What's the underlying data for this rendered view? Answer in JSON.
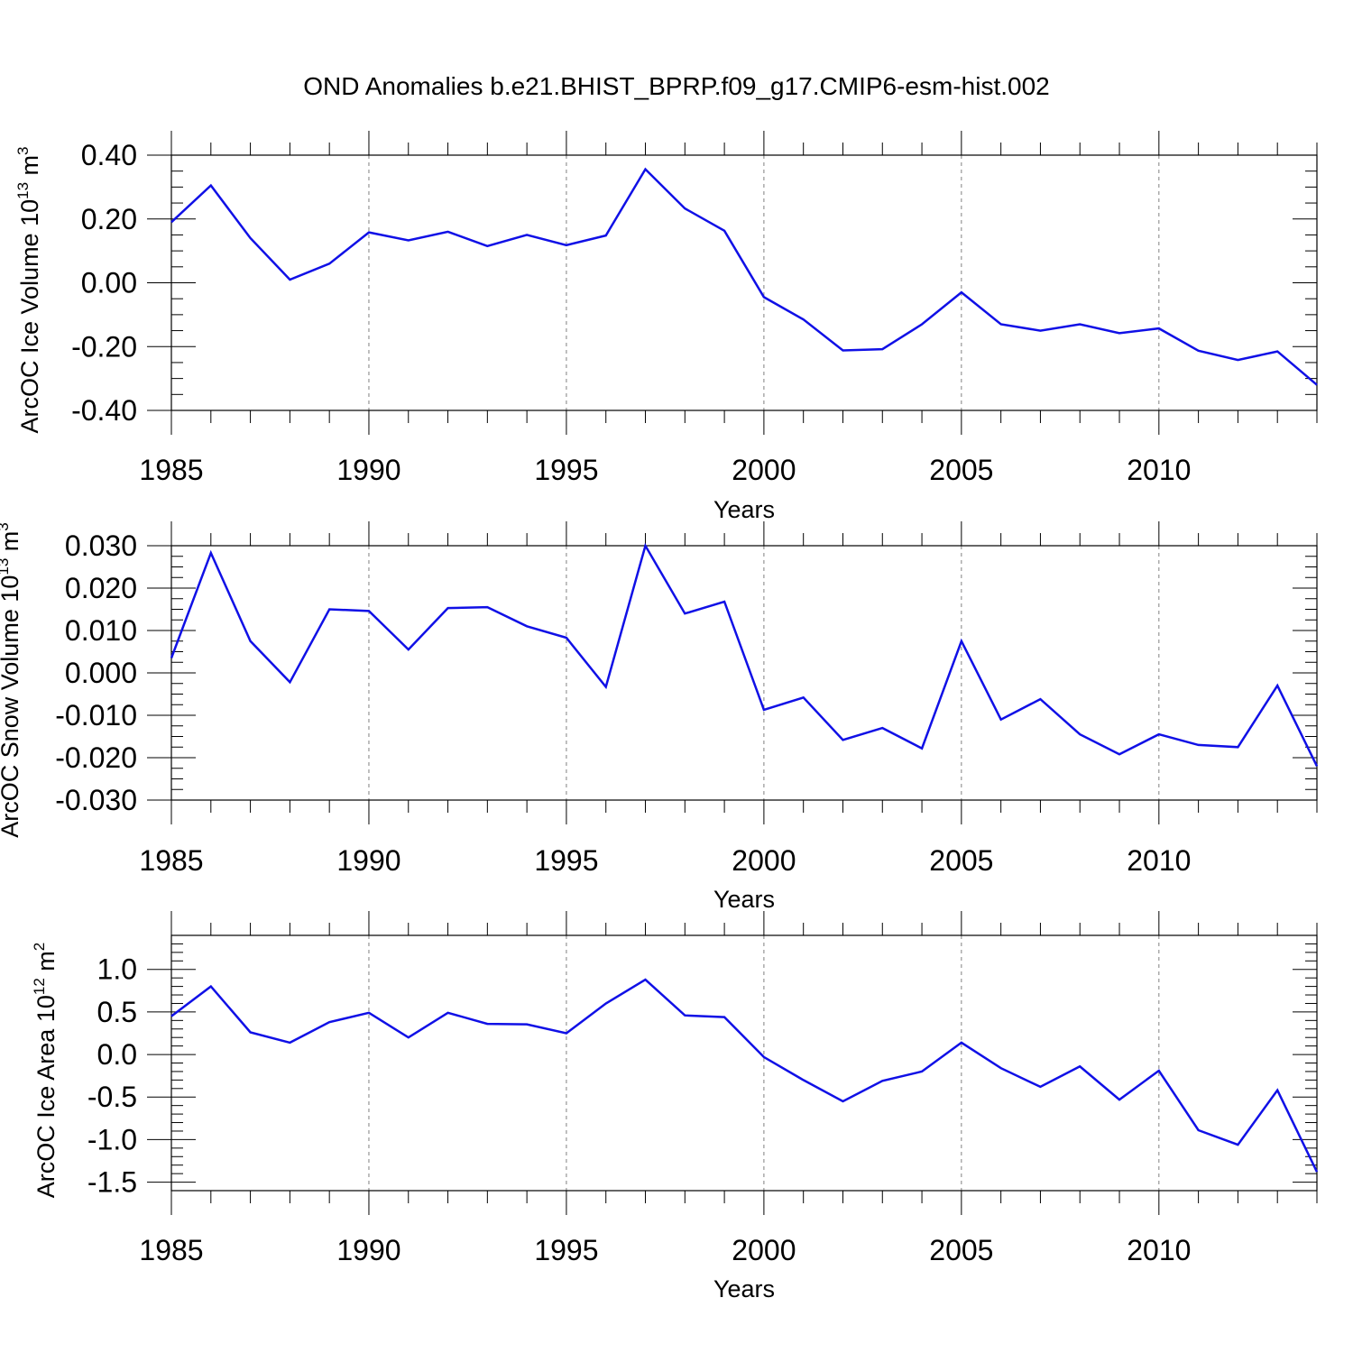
{
  "figure_title": "OND Anomalies b.e21.BHIST_BPRP.f09_g17.CMIP6-esm-hist.002",
  "colors": {
    "line": "#1010e6",
    "axis": "#000000",
    "grid": "#808080"
  },
  "chart_data": [
    {
      "type": "line",
      "xlabel": "Years",
      "ylabel": {
        "text": "ArcOC Ice Volume 10",
        "exponent": "13",
        "unit": " m",
        "unit_exponent": "3"
      },
      "xlim": [
        1985,
        2014
      ],
      "ylim": [
        -0.4,
        0.4
      ],
      "xticks": [
        1985,
        1990,
        1995,
        2000,
        2005,
        2010
      ],
      "yticks": [
        0.4,
        0.2,
        0.0,
        -0.2,
        -0.4
      ],
      "ytick_labels": [
        "0.40",
        "0.20",
        "0.00",
        "-0.20",
        "-0.40"
      ],
      "grid": "vertical dashed at major x ticks",
      "x": [
        1985,
        1986,
        1987,
        1988,
        1989,
        1990,
        1991,
        1992,
        1993,
        1994,
        1995,
        1996,
        1997,
        1998,
        1999,
        2000,
        2001,
        2002,
        2003,
        2004,
        2005,
        2006,
        2007,
        2008,
        2009,
        2010,
        2011,
        2012,
        2013,
        2014
      ],
      "values": [
        0.19,
        0.305,
        0.14,
        0.01,
        0.06,
        0.158,
        0.133,
        0.16,
        0.115,
        0.15,
        0.118,
        0.148,
        0.356,
        0.233,
        0.163,
        -0.045,
        -0.115,
        -0.212,
        -0.208,
        -0.13,
        -0.03,
        -0.13,
        -0.15,
        -0.13,
        -0.158,
        -0.143,
        -0.213,
        -0.242,
        -0.215,
        -0.32
      ]
    },
    {
      "type": "line",
      "xlabel": "Years",
      "ylabel": {
        "text": "ArcOC Snow Volume 10",
        "exponent": "13",
        "unit": " m",
        "unit_exponent": "3"
      },
      "xlim": [
        1985,
        2014
      ],
      "ylim": [
        -0.03,
        0.03
      ],
      "xticks": [
        1985,
        1990,
        1995,
        2000,
        2005,
        2010
      ],
      "yticks": [
        0.03,
        0.02,
        0.01,
        0.0,
        -0.01,
        -0.02,
        -0.03
      ],
      "ytick_labels": [
        "0.030",
        "0.020",
        "0.010",
        "0.000",
        "-0.010",
        "-0.020",
        "-0.030"
      ],
      "grid": "vertical dashed at major x ticks",
      "x": [
        1985,
        1986,
        1987,
        1988,
        1989,
        1990,
        1991,
        1992,
        1993,
        1994,
        1995,
        1996,
        1997,
        1998,
        1999,
        2000,
        2001,
        2002,
        2003,
        2004,
        2005,
        2006,
        2007,
        2008,
        2009,
        2010,
        2011,
        2012,
        2013,
        2014
      ],
      "values": [
        0.0035,
        0.0283,
        0.0075,
        -0.0022,
        0.015,
        0.0146,
        0.0055,
        0.0153,
        0.0155,
        0.011,
        0.0083,
        -0.0033,
        0.03,
        0.014,
        0.0168,
        -0.0087,
        -0.0058,
        -0.0158,
        -0.013,
        -0.0178,
        0.0075,
        -0.011,
        -0.0062,
        -0.0145,
        -0.0192,
        -0.0145,
        -0.017,
        -0.0175,
        -0.003,
        -0.022
      ]
    },
    {
      "type": "line",
      "xlabel": "Years",
      "ylabel": {
        "text": "ArcOC Ice Area 10",
        "exponent": "12",
        "unit": " m",
        "unit_exponent": "2"
      },
      "xlim": [
        1985,
        2014
      ],
      "ylim": [
        -1.6,
        1.4
      ],
      "xticks": [
        1985,
        1990,
        1995,
        2000,
        2005,
        2010
      ],
      "yticks": [
        1.0,
        0.5,
        0.0,
        -0.5,
        -1.0,
        -1.5
      ],
      "ytick_labels": [
        "1.0",
        "0.5",
        "0.0",
        "-0.5",
        "-1.0",
        "-1.5"
      ],
      "grid": "vertical dashed at major x ticks",
      "x": [
        1985,
        1986,
        1987,
        1988,
        1989,
        1990,
        1991,
        1992,
        1993,
        1994,
        1995,
        1996,
        1997,
        1998,
        1999,
        2000,
        2001,
        2002,
        2003,
        2004,
        2005,
        2006,
        2007,
        2008,
        2009,
        2010,
        2011,
        2012,
        2013,
        2014
      ],
      "values": [
        0.45,
        0.8,
        0.26,
        0.14,
        0.38,
        0.49,
        0.2,
        0.49,
        0.36,
        0.355,
        0.25,
        0.6,
        0.88,
        0.46,
        0.44,
        -0.03,
        -0.3,
        -0.55,
        -0.31,
        -0.2,
        0.14,
        -0.16,
        -0.38,
        -0.14,
        -0.53,
        -0.19,
        -0.89,
        -1.06,
        -0.42,
        -1.38
      ]
    }
  ]
}
